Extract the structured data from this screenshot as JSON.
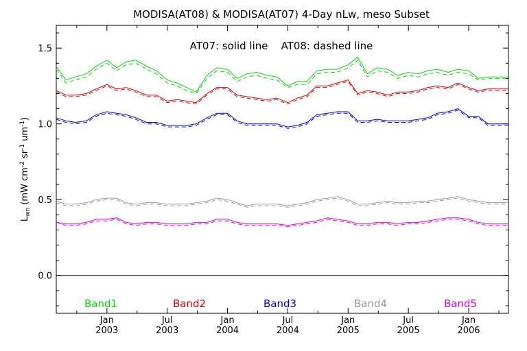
{
  "chart_data": {
    "type": "line",
    "title": "MODISA(AT08) & MODISA(AT07) 4-Day nLw, meso Subset",
    "annotation": "AT07: solid line    AT08: dashed line",
    "ylabel": "L_wn (mW cm^-2 sr^-1 um^-1)",
    "ylabel_main": "L",
    "ylabel_sub": "wn",
    "ylabel_rest": " (mW cm",
    "ylabel_sup1": "-2",
    "ylabel_mid": " sr",
    "ylabel_sup2": "-1",
    "ylabel_mid2": " um",
    "ylabel_sup3": "-1",
    "ylabel_end": ")",
    "ylim": [
      -0.25,
      1.65
    ],
    "yticks": [
      {
        "value": 0.0,
        "label": "0.0"
      },
      {
        "value": 0.5,
        "label": "0.5"
      },
      {
        "value": 1.0,
        "label": "1.0"
      },
      {
        "value": 1.5,
        "label": "1.5"
      }
    ],
    "xlim": [
      2002.58,
      2006.33
    ],
    "xticks": [
      {
        "value": 2003.0,
        "line1": "Jan",
        "line2": "2003"
      },
      {
        "value": 2003.5,
        "line1": "Jul",
        "line2": "2003"
      },
      {
        "value": 2004.0,
        "line1": "Jan",
        "line2": "2004"
      },
      {
        "value": 2004.5,
        "line1": "Jul",
        "line2": "2004"
      },
      {
        "value": 2005.0,
        "line1": "Jan",
        "line2": "2005"
      },
      {
        "value": 2005.5,
        "line1": "Jul",
        "line2": "2005"
      },
      {
        "value": 2006.0,
        "line1": "Jan",
        "line2": "2006"
      }
    ],
    "minor_xticks": [
      2002.75,
      2003.25,
      2003.75,
      2004.25,
      2004.75,
      2005.25,
      2005.75,
      2006.25
    ],
    "zero_line": 0.0,
    "x": [
      2002.58,
      2002.66,
      2002.74,
      2002.83,
      2002.91,
      2003.0,
      2003.08,
      2003.16,
      2003.24,
      2003.33,
      2003.41,
      2003.5,
      2003.58,
      2003.66,
      2003.74,
      2003.83,
      2003.91,
      2004.0,
      2004.08,
      2004.16,
      2004.24,
      2004.33,
      2004.41,
      2004.5,
      2004.58,
      2004.66,
      2004.74,
      2004.83,
      2004.91,
      2005.0,
      2005.08,
      2005.16,
      2005.24,
      2005.33,
      2005.41,
      2005.5,
      2005.58,
      2005.66,
      2005.74,
      2005.83,
      2005.91,
      2006.0,
      2006.08,
      2006.16,
      2006.24,
      2006.33
    ],
    "series": [
      {
        "name": "Band1",
        "sensor": "AT07",
        "style": "solid",
        "color": "#00e000",
        "values": [
          1.38,
          1.29,
          1.31,
          1.33,
          1.38,
          1.42,
          1.37,
          1.41,
          1.42,
          1.38,
          1.35,
          1.29,
          1.27,
          1.24,
          1.21,
          1.32,
          1.37,
          1.36,
          1.3,
          1.33,
          1.34,
          1.32,
          1.31,
          1.25,
          1.28,
          1.28,
          1.35,
          1.36,
          1.36,
          1.39,
          1.44,
          1.33,
          1.37,
          1.36,
          1.32,
          1.34,
          1.33,
          1.35,
          1.36,
          1.34,
          1.36,
          1.35,
          1.3,
          1.31,
          1.31,
          1.31
        ]
      },
      {
        "name": "Band1",
        "sensor": "AT08",
        "style": "dashed",
        "color": "#00e000",
        "values": [
          1.36,
          1.27,
          1.29,
          1.31,
          1.36,
          1.4,
          1.35,
          1.39,
          1.4,
          1.36,
          1.33,
          1.27,
          1.25,
          1.22,
          1.2,
          1.3,
          1.35,
          1.34,
          1.28,
          1.31,
          1.32,
          1.3,
          1.29,
          1.24,
          1.26,
          1.26,
          1.33,
          1.34,
          1.34,
          1.37,
          1.42,
          1.31,
          1.35,
          1.34,
          1.3,
          1.32,
          1.31,
          1.33,
          1.34,
          1.32,
          1.34,
          1.33,
          1.29,
          1.3,
          1.3,
          1.3
        ]
      },
      {
        "name": "Band2",
        "sensor": "AT07",
        "style": "solid",
        "color": "#e00000",
        "values": [
          1.22,
          1.19,
          1.19,
          1.2,
          1.23,
          1.26,
          1.23,
          1.24,
          1.22,
          1.19,
          1.19,
          1.15,
          1.16,
          1.15,
          1.14,
          1.2,
          1.24,
          1.24,
          1.19,
          1.18,
          1.17,
          1.16,
          1.17,
          1.14,
          1.17,
          1.19,
          1.25,
          1.25,
          1.27,
          1.29,
          1.2,
          1.22,
          1.21,
          1.19,
          1.21,
          1.21,
          1.22,
          1.24,
          1.25,
          1.24,
          1.27,
          1.24,
          1.22,
          1.23,
          1.23,
          1.23
        ]
      },
      {
        "name": "Band2",
        "sensor": "AT08",
        "style": "dashed",
        "color": "#e00000",
        "values": [
          1.21,
          1.18,
          1.18,
          1.19,
          1.22,
          1.25,
          1.22,
          1.23,
          1.21,
          1.18,
          1.18,
          1.14,
          1.15,
          1.14,
          1.13,
          1.19,
          1.23,
          1.23,
          1.18,
          1.17,
          1.16,
          1.15,
          1.16,
          1.13,
          1.16,
          1.18,
          1.24,
          1.24,
          1.26,
          1.28,
          1.19,
          1.21,
          1.2,
          1.18,
          1.2,
          1.2,
          1.21,
          1.23,
          1.24,
          1.23,
          1.26,
          1.23,
          1.21,
          1.22,
          1.22,
          1.22
        ]
      },
      {
        "name": "Band3",
        "sensor": "AT07",
        "style": "solid",
        "color": "#0000e0",
        "values": [
          1.04,
          1.02,
          1.01,
          1.02,
          1.06,
          1.08,
          1.07,
          1.06,
          1.04,
          1.01,
          1.01,
          0.99,
          0.99,
          0.99,
          1.0,
          1.04,
          1.07,
          1.07,
          1.02,
          1.0,
          1.0,
          1.0,
          1.0,
          0.98,
          0.99,
          1.01,
          1.06,
          1.07,
          1.08,
          1.08,
          1.02,
          1.02,
          1.03,
          1.02,
          1.02,
          1.02,
          1.03,
          1.04,
          1.07,
          1.08,
          1.1,
          1.05,
          1.05,
          1.0,
          1.0,
          1.0
        ]
      },
      {
        "name": "Band3",
        "sensor": "AT08",
        "style": "dashed",
        "color": "#0000e0",
        "values": [
          1.03,
          1.01,
          1.0,
          1.01,
          1.05,
          1.07,
          1.06,
          1.05,
          1.03,
          1.0,
          1.0,
          0.98,
          0.98,
          0.98,
          0.99,
          1.03,
          1.06,
          1.06,
          1.01,
          0.99,
          0.99,
          0.99,
          0.99,
          0.97,
          0.98,
          1.0,
          1.05,
          1.06,
          1.07,
          1.07,
          1.01,
          1.01,
          1.02,
          1.01,
          1.01,
          1.01,
          1.02,
          1.03,
          1.06,
          1.07,
          1.09,
          1.04,
          1.04,
          0.99,
          0.99,
          0.99
        ]
      },
      {
        "name": "Band4",
        "sensor": "AT07",
        "style": "solid",
        "color": "#999999",
        "values": [
          0.49,
          0.47,
          0.47,
          0.48,
          0.5,
          0.51,
          0.51,
          0.48,
          0.47,
          0.48,
          0.48,
          0.47,
          0.47,
          0.47,
          0.48,
          0.49,
          0.51,
          0.5,
          0.48,
          0.46,
          0.47,
          0.47,
          0.47,
          0.46,
          0.47,
          0.48,
          0.5,
          0.51,
          0.52,
          0.5,
          0.47,
          0.47,
          0.48,
          0.49,
          0.48,
          0.48,
          0.49,
          0.49,
          0.5,
          0.51,
          0.52,
          0.5,
          0.49,
          0.48,
          0.48,
          0.48
        ]
      },
      {
        "name": "Band4",
        "sensor": "AT08",
        "style": "dashed",
        "color": "#999999",
        "values": [
          0.48,
          0.46,
          0.46,
          0.47,
          0.49,
          0.5,
          0.5,
          0.47,
          0.46,
          0.47,
          0.47,
          0.46,
          0.46,
          0.46,
          0.47,
          0.48,
          0.5,
          0.49,
          0.47,
          0.45,
          0.46,
          0.46,
          0.46,
          0.45,
          0.46,
          0.47,
          0.49,
          0.5,
          0.51,
          0.49,
          0.46,
          0.46,
          0.47,
          0.48,
          0.47,
          0.47,
          0.48,
          0.48,
          0.49,
          0.5,
          0.51,
          0.49,
          0.48,
          0.47,
          0.47,
          0.47
        ]
      },
      {
        "name": "Band5",
        "sensor": "AT07",
        "style": "solid",
        "color": "#e000e0",
        "values": [
          0.35,
          0.34,
          0.34,
          0.35,
          0.37,
          0.37,
          0.38,
          0.35,
          0.34,
          0.35,
          0.35,
          0.34,
          0.34,
          0.34,
          0.35,
          0.35,
          0.37,
          0.37,
          0.35,
          0.34,
          0.34,
          0.34,
          0.34,
          0.33,
          0.34,
          0.35,
          0.36,
          0.38,
          0.37,
          0.36,
          0.34,
          0.34,
          0.35,
          0.35,
          0.34,
          0.35,
          0.35,
          0.36,
          0.37,
          0.38,
          0.38,
          0.37,
          0.35,
          0.34,
          0.34,
          0.34
        ]
      },
      {
        "name": "Band5",
        "sensor": "AT08",
        "style": "dashed",
        "color": "#e000e0",
        "values": [
          0.35,
          0.33,
          0.33,
          0.34,
          0.36,
          0.36,
          0.37,
          0.34,
          0.33,
          0.34,
          0.34,
          0.33,
          0.33,
          0.33,
          0.34,
          0.34,
          0.36,
          0.36,
          0.34,
          0.33,
          0.33,
          0.33,
          0.33,
          0.32,
          0.33,
          0.34,
          0.35,
          0.37,
          0.36,
          0.35,
          0.33,
          0.33,
          0.34,
          0.34,
          0.33,
          0.34,
          0.34,
          0.35,
          0.36,
          0.37,
          0.37,
          0.36,
          0.34,
          0.33,
          0.33,
          0.33
        ]
      }
    ],
    "legend": [
      {
        "label": "Band1",
        "color": "#00e000"
      },
      {
        "label": "Band2",
        "color": "#e00000"
      },
      {
        "label": "Band3",
        "color": "#0000e0"
      },
      {
        "label": "Band4",
        "color": "#999999"
      },
      {
        "label": "Band5",
        "color": "#e000e0"
      }
    ],
    "legend_placement": "bottom inside plot",
    "grid": false
  }
}
